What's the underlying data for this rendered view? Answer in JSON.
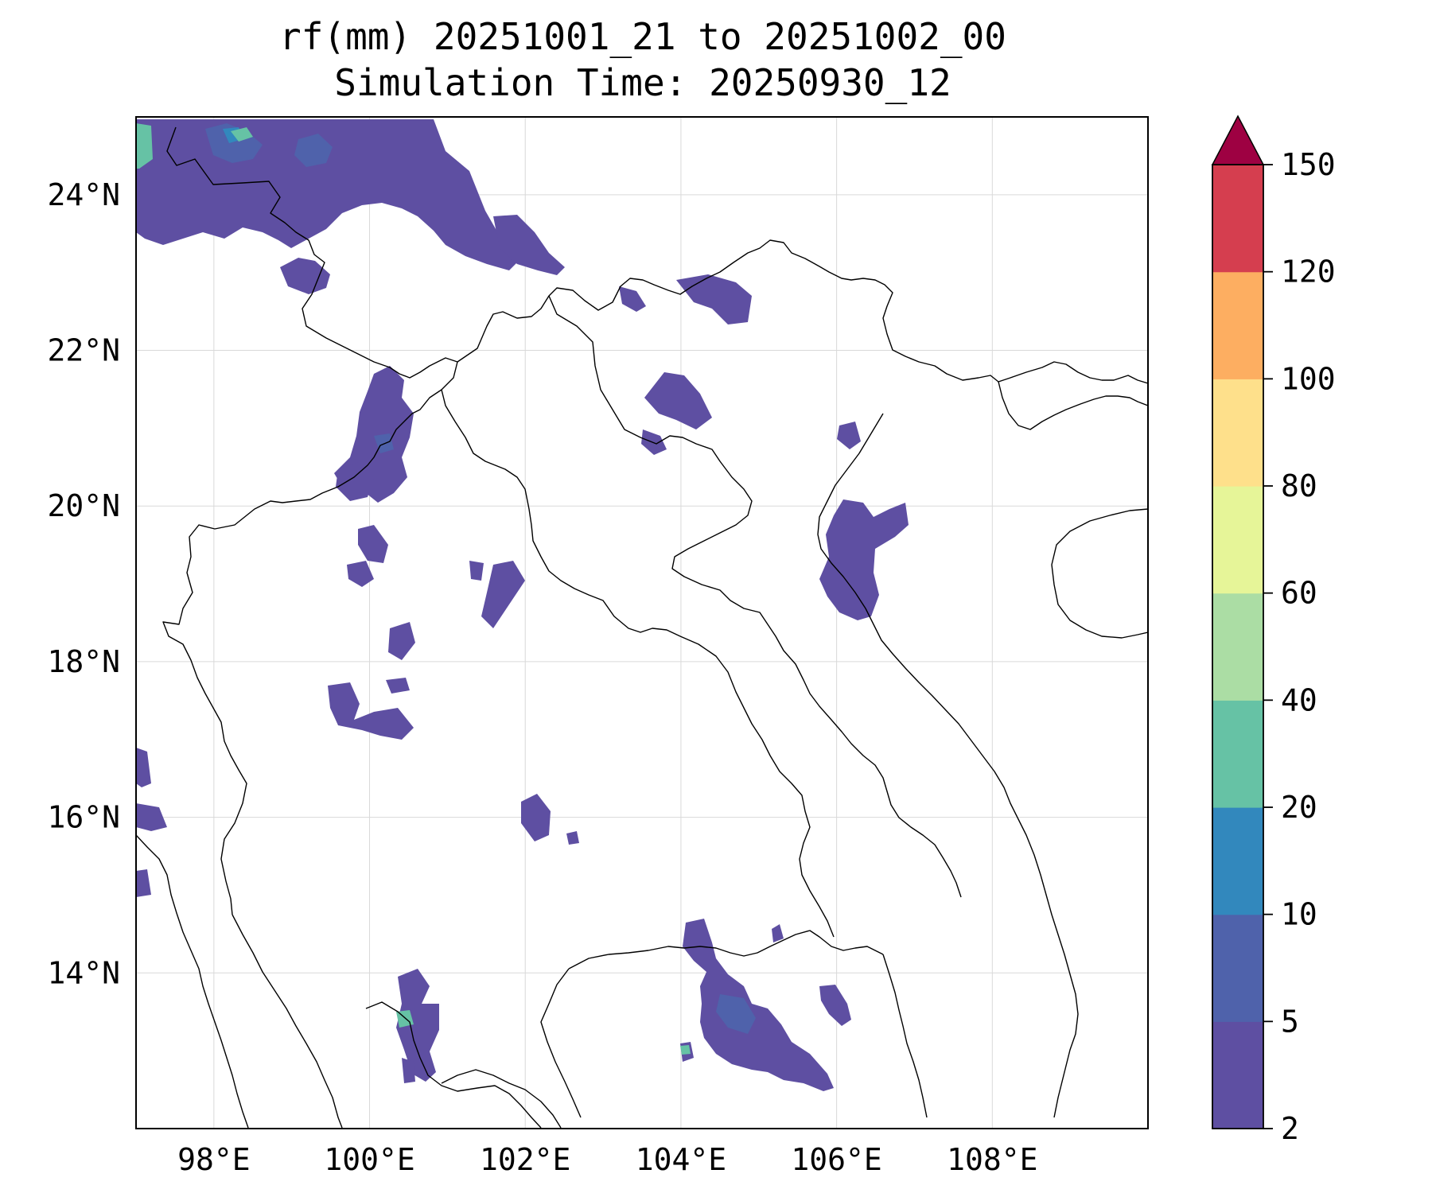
{
  "title": {
    "line1": "rf(mm) 20251001_21 to 20251002_00",
    "line2": "Simulation Time: 20250930_12"
  },
  "map": {
    "lon_range": [
      97,
      110
    ],
    "lat_range": [
      12,
      25
    ],
    "lon_ticks": [
      {
        "value": 98,
        "label": "98°E"
      },
      {
        "value": 100,
        "label": "100°E"
      },
      {
        "value": 102,
        "label": "102°E"
      },
      {
        "value": 104,
        "label": "104°E"
      },
      {
        "value": 106,
        "label": "106°E"
      },
      {
        "value": 108,
        "label": "108°E"
      }
    ],
    "lat_ticks": [
      {
        "value": 14,
        "label": "14°N"
      },
      {
        "value": 16,
        "label": "16°N"
      },
      {
        "value": 18,
        "label": "18°N"
      },
      {
        "value": 20,
        "label": "20°N"
      },
      {
        "value": 22,
        "label": "22°N"
      },
      {
        "value": 24,
        "label": "24°N"
      }
    ],
    "grid": true
  },
  "colorbar": {
    "levels": [
      {
        "value": 2,
        "label": "2"
      },
      {
        "value": 5,
        "label": "5"
      },
      {
        "value": 10,
        "label": "10"
      },
      {
        "value": 20,
        "label": "20"
      },
      {
        "value": 40,
        "label": "40"
      },
      {
        "value": 60,
        "label": "60"
      },
      {
        "value": 80,
        "label": "80"
      },
      {
        "value": 100,
        "label": "100"
      },
      {
        "value": 120,
        "label": "120"
      },
      {
        "value": 150,
        "label": "150"
      }
    ],
    "colors": [
      "#5e4fa2",
      "#4f62ab",
      "#3288bd",
      "#66c2a5",
      "#abdda4",
      "#e6f598",
      "#fee08b",
      "#fdae61",
      "#d53e4f"
    ],
    "extend_color": "#9e0142",
    "extend": "max"
  },
  "colors": {
    "band_2_5": "#5e4fa2",
    "band_5_10": "#4f62ab",
    "band_10_20": "#3288bd",
    "band_20_40": "#66c2a5"
  }
}
